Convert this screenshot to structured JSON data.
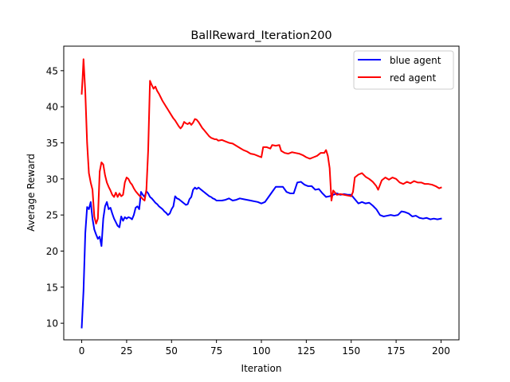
{
  "chart_data": {
    "type": "line",
    "title": "BallReward_Iteration200",
    "xlabel": "Iteration",
    "ylabel": "Average Reward",
    "xlim": [
      -10,
      210
    ],
    "ylim": [
      7.7,
      48.4
    ],
    "xticks": [
      0,
      25,
      50,
      75,
      100,
      125,
      150,
      175,
      200
    ],
    "yticks": [
      10,
      15,
      20,
      25,
      30,
      35,
      40,
      45
    ],
    "grid": false,
    "legend_position": "top-right",
    "series": [
      {
        "name": "blue agent",
        "color": "#0000ff",
        "points": [
          [
            0,
            9.4
          ],
          [
            1,
            14.5
          ],
          [
            2,
            22.5
          ],
          [
            3,
            26.1
          ],
          [
            4,
            25.8
          ],
          [
            5,
            26.8
          ],
          [
            6,
            24.5
          ],
          [
            7,
            23.0
          ],
          [
            8,
            22.3
          ],
          [
            9,
            21.7
          ],
          [
            10,
            22.0
          ],
          [
            11,
            20.7
          ],
          [
            12,
            24.5
          ],
          [
            13,
            26.2
          ],
          [
            14,
            26.8
          ],
          [
            15,
            25.8
          ],
          [
            16,
            26.0
          ],
          [
            17,
            25.2
          ],
          [
            18,
            24.5
          ],
          [
            19,
            24.0
          ],
          [
            20,
            23.5
          ],
          [
            21,
            23.3
          ],
          [
            22,
            24.8
          ],
          [
            23,
            24.2
          ],
          [
            24,
            24.7
          ],
          [
            25,
            24.5
          ],
          [
            26,
            24.7
          ],
          [
            27,
            24.6
          ],
          [
            28,
            24.4
          ],
          [
            29,
            25.0
          ],
          [
            30,
            26.0
          ],
          [
            31,
            26.2
          ],
          [
            32,
            25.8
          ],
          [
            33,
            28.2
          ],
          [
            34,
            27.8
          ],
          [
            35,
            27.5
          ],
          [
            36,
            28.3
          ],
          [
            37,
            28.0
          ],
          [
            38,
            27.5
          ],
          [
            39,
            27.3
          ],
          [
            40,
            27.0
          ],
          [
            41,
            26.7
          ],
          [
            42,
            26.5
          ],
          [
            43,
            26.2
          ],
          [
            44,
            26.0
          ],
          [
            45,
            25.8
          ],
          [
            46,
            25.5
          ],
          [
            47,
            25.3
          ],
          [
            48,
            25.0
          ],
          [
            49,
            25.2
          ],
          [
            50,
            25.8
          ],
          [
            51,
            26.2
          ],
          [
            52,
            27.6
          ],
          [
            53,
            27.3
          ],
          [
            54,
            27.2
          ],
          [
            55,
            27.0
          ],
          [
            56,
            26.8
          ],
          [
            57,
            26.6
          ],
          [
            58,
            26.4
          ],
          [
            59,
            26.5
          ],
          [
            60,
            27.2
          ],
          [
            61,
            27.5
          ],
          [
            62,
            28.5
          ],
          [
            63,
            28.8
          ],
          [
            64,
            28.6
          ],
          [
            65,
            28.8
          ],
          [
            66,
            28.6
          ],
          [
            67,
            28.4
          ],
          [
            68,
            28.2
          ],
          [
            69,
            28.0
          ],
          [
            70,
            27.8
          ],
          [
            71,
            27.6
          ],
          [
            72,
            27.5
          ],
          [
            73,
            27.3
          ],
          [
            74,
            27.2
          ],
          [
            75,
            27.0
          ],
          [
            78,
            27.0
          ],
          [
            80,
            27.1
          ],
          [
            82,
            27.3
          ],
          [
            84,
            27.0
          ],
          [
            86,
            27.1
          ],
          [
            88,
            27.3
          ],
          [
            90,
            27.2
          ],
          [
            92,
            27.1
          ],
          [
            94,
            27.0
          ],
          [
            96,
            26.9
          ],
          [
            98,
            26.8
          ],
          [
            100,
            26.6
          ],
          [
            102,
            26.8
          ],
          [
            104,
            27.5
          ],
          [
            106,
            28.2
          ],
          [
            108,
            28.9
          ],
          [
            110,
            28.9
          ],
          [
            112,
            28.9
          ],
          [
            114,
            28.2
          ],
          [
            116,
            28.0
          ],
          [
            118,
            28.0
          ],
          [
            120,
            29.5
          ],
          [
            122,
            29.6
          ],
          [
            124,
            29.2
          ],
          [
            126,
            29.0
          ],
          [
            128,
            29.0
          ],
          [
            130,
            28.5
          ],
          [
            132,
            28.6
          ],
          [
            134,
            28.0
          ],
          [
            136,
            27.5
          ],
          [
            138,
            27.6
          ],
          [
            140,
            27.8
          ],
          [
            142,
            28.0
          ],
          [
            144,
            27.8
          ],
          [
            146,
            27.9
          ],
          [
            148,
            27.8
          ],
          [
            150,
            27.8
          ],
          [
            152,
            27.2
          ],
          [
            154,
            26.6
          ],
          [
            156,
            26.8
          ],
          [
            158,
            26.6
          ],
          [
            160,
            26.7
          ],
          [
            162,
            26.3
          ],
          [
            164,
            25.8
          ],
          [
            166,
            25.0
          ],
          [
            168,
            24.8
          ],
          [
            170,
            24.9
          ],
          [
            172,
            25.0
          ],
          [
            174,
            24.9
          ],
          [
            176,
            25.0
          ],
          [
            178,
            25.5
          ],
          [
            180,
            25.4
          ],
          [
            182,
            25.2
          ],
          [
            184,
            24.8
          ],
          [
            186,
            24.9
          ],
          [
            188,
            24.6
          ],
          [
            190,
            24.5
          ],
          [
            192,
            24.6
          ],
          [
            194,
            24.4
          ],
          [
            196,
            24.5
          ],
          [
            198,
            24.4
          ],
          [
            200,
            24.5
          ]
        ]
      },
      {
        "name": "red agent",
        "color": "#ff0000",
        "points": [
          [
            0,
            41.8
          ],
          [
            0.5,
            44.0
          ],
          [
            1,
            46.6
          ],
          [
            2,
            42.0
          ],
          [
            3,
            35.0
          ],
          [
            4,
            30.8
          ],
          [
            5,
            29.5
          ],
          [
            6,
            28.5
          ],
          [
            7,
            24.8
          ],
          [
            8,
            23.8
          ],
          [
            9,
            24.5
          ],
          [
            10,
            31.0
          ],
          [
            11,
            32.3
          ],
          [
            12,
            32.0
          ],
          [
            13,
            30.5
          ],
          [
            14,
            29.5
          ],
          [
            15,
            28.9
          ],
          [
            16,
            28.4
          ],
          [
            17,
            27.8
          ],
          [
            18,
            27.5
          ],
          [
            19,
            28.1
          ],
          [
            20,
            27.5
          ],
          [
            21,
            28.0
          ],
          [
            22,
            27.6
          ],
          [
            23,
            27.8
          ],
          [
            24,
            29.5
          ],
          [
            25,
            30.2
          ],
          [
            26,
            30.0
          ],
          [
            27,
            29.5
          ],
          [
            28,
            29.2
          ],
          [
            29,
            28.7
          ],
          [
            30,
            28.3
          ],
          [
            31,
            28.0
          ],
          [
            32,
            27.7
          ],
          [
            33,
            27.5
          ],
          [
            34,
            27.2
          ],
          [
            35,
            27.0
          ],
          [
            36,
            28.5
          ],
          [
            37,
            34.0
          ],
          [
            38,
            43.6
          ],
          [
            39,
            43.0
          ],
          [
            40,
            42.5
          ],
          [
            41,
            42.8
          ],
          [
            42,
            42.2
          ],
          [
            43,
            41.8
          ],
          [
            44,
            41.3
          ],
          [
            45,
            40.8
          ],
          [
            46,
            40.4
          ],
          [
            47,
            40.0
          ],
          [
            48,
            39.6
          ],
          [
            49,
            39.2
          ],
          [
            50,
            38.8
          ],
          [
            51,
            38.4
          ],
          [
            52,
            38.1
          ],
          [
            53,
            37.7
          ],
          [
            54,
            37.3
          ],
          [
            55,
            37.0
          ],
          [
            56,
            37.3
          ],
          [
            57,
            37.9
          ],
          [
            58,
            37.7
          ],
          [
            59,
            37.6
          ],
          [
            60,
            37.8
          ],
          [
            61,
            37.5
          ],
          [
            62,
            37.8
          ],
          [
            63,
            38.3
          ],
          [
            64,
            38.2
          ],
          [
            65,
            37.9
          ],
          [
            66,
            37.5
          ],
          [
            67,
            37.1
          ],
          [
            68,
            36.8
          ],
          [
            69,
            36.5
          ],
          [
            70,
            36.2
          ],
          [
            71,
            35.9
          ],
          [
            72,
            35.7
          ],
          [
            73,
            35.6
          ],
          [
            74,
            35.5
          ],
          [
            75,
            35.5
          ],
          [
            76,
            35.3
          ],
          [
            78,
            35.4
          ],
          [
            80,
            35.2
          ],
          [
            82,
            35.0
          ],
          [
            84,
            34.9
          ],
          [
            86,
            34.6
          ],
          [
            88,
            34.3
          ],
          [
            90,
            34.0
          ],
          [
            92,
            33.8
          ],
          [
            94,
            33.5
          ],
          [
            96,
            33.4
          ],
          [
            98,
            33.2
          ],
          [
            100,
            33.0
          ],
          [
            101,
            34.4
          ],
          [
            103,
            34.4
          ],
          [
            105,
            34.2
          ],
          [
            106,
            34.7
          ],
          [
            108,
            34.6
          ],
          [
            110,
            34.7
          ],
          [
            111,
            33.9
          ],
          [
            113,
            33.6
          ],
          [
            115,
            33.5
          ],
          [
            117,
            33.7
          ],
          [
            119,
            33.6
          ],
          [
            121,
            33.5
          ],
          [
            123,
            33.3
          ],
          [
            125,
            33.0
          ],
          [
            127,
            32.8
          ],
          [
            129,
            33.0
          ],
          [
            131,
            33.2
          ],
          [
            133,
            33.6
          ],
          [
            135,
            33.6
          ],
          [
            136,
            34.0
          ],
          [
            137,
            33.2
          ],
          [
            138,
            31.5
          ],
          [
            139,
            27.0
          ],
          [
            140,
            28.4
          ],
          [
            142,
            27.8
          ],
          [
            144,
            27.9
          ],
          [
            146,
            27.8
          ],
          [
            148,
            27.7
          ],
          [
            150,
            27.6
          ],
          [
            151,
            28.2
          ],
          [
            152,
            30.2
          ],
          [
            154,
            30.6
          ],
          [
            156,
            30.8
          ],
          [
            158,
            30.3
          ],
          [
            160,
            30.0
          ],
          [
            162,
            29.6
          ],
          [
            164,
            29.0
          ],
          [
            165,
            28.5
          ],
          [
            167,
            29.8
          ],
          [
            169,
            30.2
          ],
          [
            171,
            29.9
          ],
          [
            173,
            30.2
          ],
          [
            175,
            30.0
          ],
          [
            177,
            29.5
          ],
          [
            179,
            29.3
          ],
          [
            181,
            29.6
          ],
          [
            183,
            29.4
          ],
          [
            185,
            29.7
          ],
          [
            187,
            29.5
          ],
          [
            189,
            29.5
          ],
          [
            191,
            29.3
          ],
          [
            193,
            29.3
          ],
          [
            195,
            29.2
          ],
          [
            197,
            29.0
          ],
          [
            199,
            28.7
          ],
          [
            200,
            28.8
          ]
        ]
      }
    ]
  }
}
